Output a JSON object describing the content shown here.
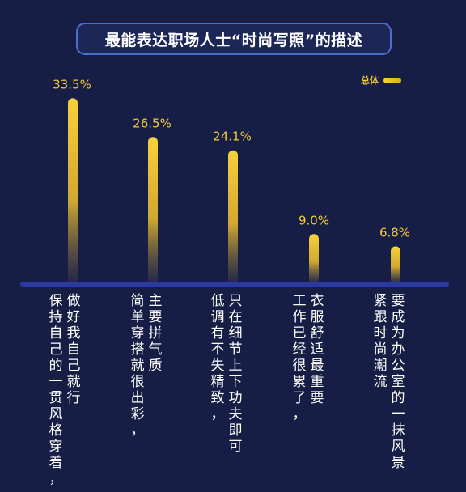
{
  "title": "最能表达职场人士“时尚写照”的描述",
  "legend": {
    "label": "总体",
    "color": "#f2c838"
  },
  "colors": {
    "background": "#171e45",
    "baseline": "#2b3aa0",
    "bar_top": "#f7d23a",
    "label": "#f2c838",
    "category_text": "#ffffff"
  },
  "chart_data": {
    "type": "bar",
    "title": "最能表达职场人士“时尚写照”的描述",
    "xlabel": "",
    "ylabel": "",
    "ylim": [
      0,
      35
    ],
    "grid": false,
    "legend_position": "top-right",
    "categories": [
      "做好我自己就行，保持自己的一贯风格穿着",
      "主要拼气质，简单穿搭就很出彩",
      "只在细节上下功夫即可，低调有不失精致",
      "衣服舒适最重要，工作已经很累了",
      "要成为办公室的一抹风景，紧跟时尚潮流"
    ],
    "series": [
      {
        "name": "总体",
        "values": [
          33.5,
          26.5,
          24.1,
          9.0,
          6.8
        ]
      }
    ],
    "value_labels": [
      "33.5%",
      "26.5%",
      "24.1%",
      "9.0%",
      "6.8%"
    ]
  },
  "category_lines": [
    [
      "做好我自己就行",
      "保持自己的一贯风格穿着，"
    ],
    [
      "主要拼气质",
      "简单穿搭就很出彩，"
    ],
    [
      "只在细节上下功夫即可",
      "低调有不失精致，"
    ],
    [
      "衣服舒适最重要",
      "工作已经很累了，"
    ],
    [
      "要成为办公室的一抹风景",
      "紧跟时尚潮流"
    ]
  ]
}
